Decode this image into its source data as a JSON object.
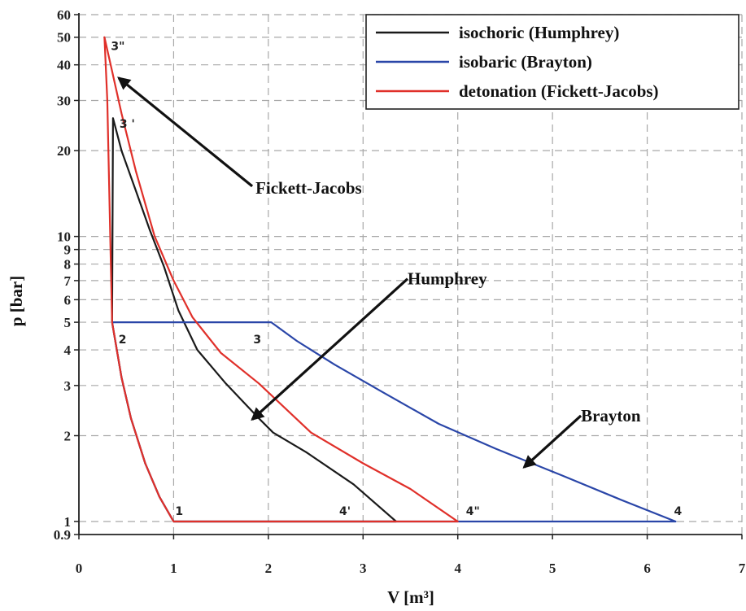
{
  "chart_data": {
    "type": "line",
    "xlabel": "V [m³]",
    "ylabel": "p [bar]",
    "x_scale": "linear",
    "y_scale": "log",
    "xlim": [
      0,
      7
    ],
    "ylim": [
      0.9,
      60
    ],
    "x_ticks": [
      "0",
      "1",
      "2",
      "3",
      "4",
      "5",
      "6",
      "7"
    ],
    "y_ticks": [
      {
        "value": 0.9,
        "label": "0.9"
      },
      {
        "value": 1,
        "label": "1"
      },
      {
        "value": 2,
        "label": "2"
      },
      {
        "value": 3,
        "label": "3"
      },
      {
        "value": 4,
        "label": "4"
      },
      {
        "value": 5,
        "label": "5"
      },
      {
        "value": 6,
        "label": "6"
      },
      {
        "value": 7,
        "label": "7"
      },
      {
        "value": 8,
        "label": "8"
      },
      {
        "value": 9,
        "label": "9"
      },
      {
        "value": 10,
        "label": "10"
      },
      {
        "value": 20,
        "label": "20"
      },
      {
        "value": 30,
        "label": "30"
      },
      {
        "value": 40,
        "label": "40"
      },
      {
        "value": 50,
        "label": "50"
      },
      {
        "value": 60,
        "label": "60"
      }
    ],
    "grid": true,
    "legend_position": "top-right",
    "series": [
      {
        "name": "isochoric (Humphrey)",
        "color": "#1a1a1a",
        "points": [
          [
            1.0,
            1.0
          ],
          [
            0.85,
            1.22
          ],
          [
            0.7,
            1.6
          ],
          [
            0.55,
            2.3
          ],
          [
            0.45,
            3.2
          ],
          [
            0.35,
            5.0
          ],
          [
            0.36,
            26.0
          ],
          [
            0.45,
            20.0
          ],
          [
            0.6,
            14.5
          ],
          [
            0.75,
            10.5
          ],
          [
            0.9,
            7.8
          ],
          [
            1.05,
            5.5
          ],
          [
            1.25,
            4.0
          ],
          [
            1.55,
            3.05
          ],
          [
            1.9,
            2.3
          ],
          [
            2.05,
            2.05
          ],
          [
            2.4,
            1.75
          ],
          [
            2.9,
            1.35
          ],
          [
            3.35,
            1.0
          ],
          [
            1.0,
            1.0
          ]
        ]
      },
      {
        "name": "isobaric (Brayton)",
        "color": "#2a46a8",
        "points": [
          [
            1.0,
            1.0
          ],
          [
            0.85,
            1.22
          ],
          [
            0.7,
            1.6
          ],
          [
            0.55,
            2.3
          ],
          [
            0.45,
            3.2
          ],
          [
            0.35,
            5.0
          ],
          [
            2.03,
            5.0
          ],
          [
            2.3,
            4.3
          ],
          [
            2.7,
            3.55
          ],
          [
            3.2,
            2.85
          ],
          [
            3.8,
            2.2
          ],
          [
            4.4,
            1.8
          ],
          [
            5.1,
            1.45
          ],
          [
            5.7,
            1.2
          ],
          [
            6.3,
            1.0
          ],
          [
            1.0,
            1.0
          ]
        ]
      },
      {
        "name": "detonation (Fickett-Jacobs)",
        "color": "#e0302a",
        "points": [
          [
            1.0,
            1.0
          ],
          [
            0.85,
            1.22
          ],
          [
            0.7,
            1.6
          ],
          [
            0.55,
            2.3
          ],
          [
            0.45,
            3.2
          ],
          [
            0.35,
            5.0
          ],
          [
            0.3,
            30.0
          ],
          [
            0.27,
            50.0
          ],
          [
            0.35,
            38.0
          ],
          [
            0.45,
            27.0
          ],
          [
            0.6,
            17.0
          ],
          [
            0.8,
            10.0
          ],
          [
            1.0,
            7.0
          ],
          [
            1.2,
            5.2
          ],
          [
            1.5,
            3.9
          ],
          [
            1.9,
            3.05
          ],
          [
            2.45,
            2.05
          ],
          [
            3.0,
            1.6
          ],
          [
            3.5,
            1.3
          ],
          [
            4.0,
            1.0
          ],
          [
            1.0,
            1.0
          ]
        ]
      }
    ],
    "point_labels": [
      {
        "text": "1",
        "x": 1.0,
        "y": 1.0
      },
      {
        "text": "2",
        "x": 0.35,
        "y": 5.0
      },
      {
        "text": "3",
        "x": 2.03,
        "y": 5.0
      },
      {
        "text": "3 '",
        "x": 0.36,
        "y": 26.0
      },
      {
        "text": "3\"",
        "x": 0.27,
        "y": 50.0
      },
      {
        "text": "4'",
        "x": 3.35,
        "y": 1.0
      },
      {
        "text": "4\"",
        "x": 4.0,
        "y": 1.0
      },
      {
        "text": "4",
        "x": 6.3,
        "y": 1.0
      }
    ],
    "annotations": [
      {
        "text": "Fickett-Jacobs",
        "target": [
          0.42,
          36.0
        ],
        "text_at": [
          1.83,
          15.0
        ]
      },
      {
        "text": "Humphrey",
        "target": [
          1.83,
          2.28
        ],
        "text_at": [
          3.47,
          7.1
        ]
      },
      {
        "text": "Brayton",
        "target": [
          4.7,
          1.55
        ],
        "text_at": [
          5.3,
          2.35
        ]
      }
    ]
  }
}
